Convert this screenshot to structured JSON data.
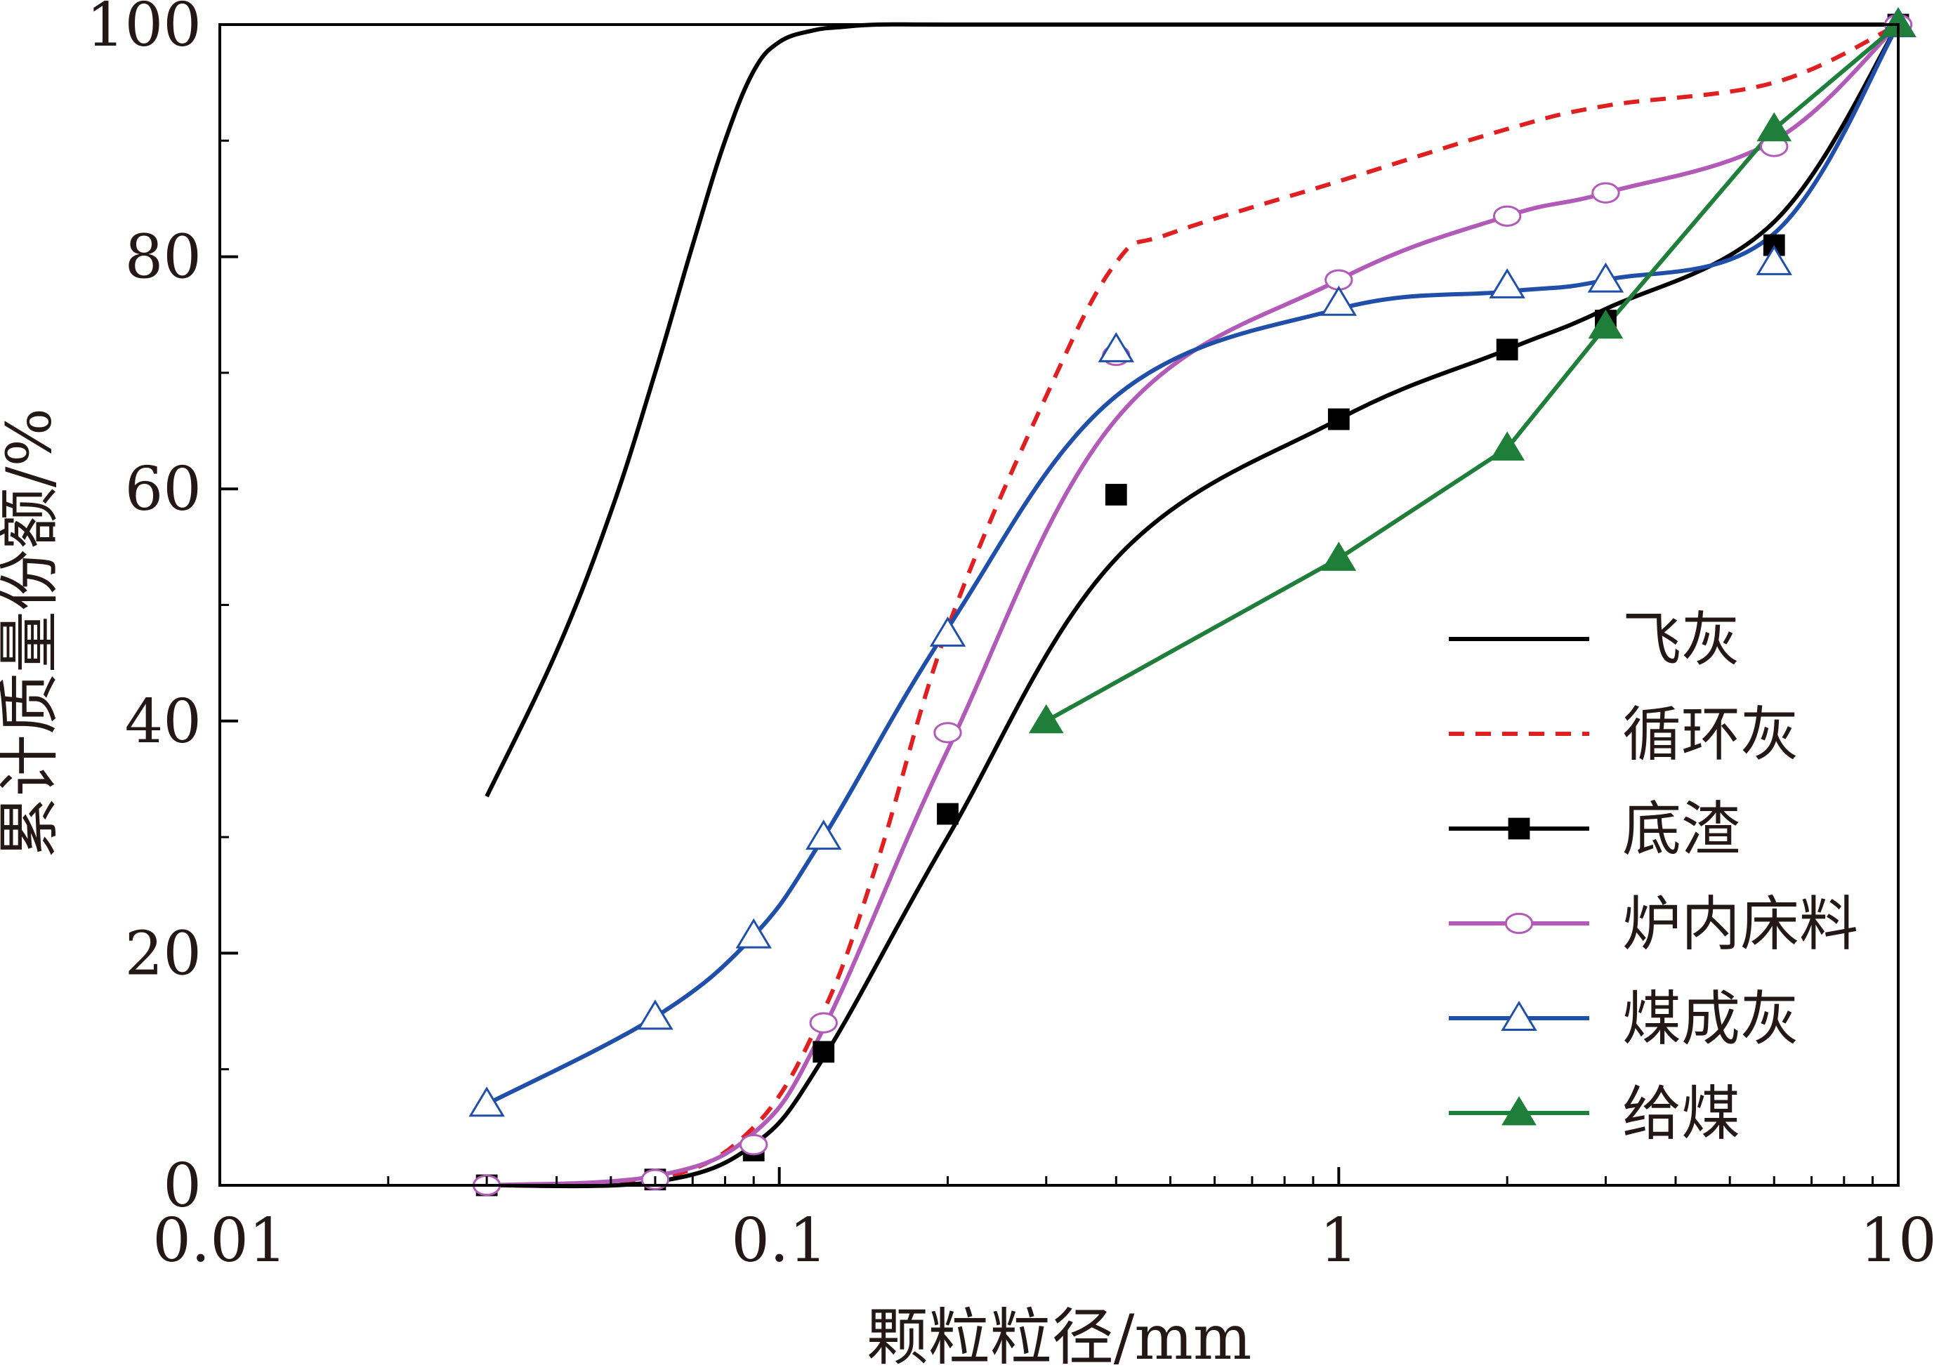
{
  "chart_data": {
    "type": "line",
    "title": "",
    "xlabel": "颗粒粒径/mm",
    "ylabel": "累计质量份额/%",
    "xscale": "log",
    "xlim": [
      0.01,
      10
    ],
    "ylim": [
      0,
      100
    ],
    "xticks": [
      0.01,
      0.1,
      1,
      10
    ],
    "xtick_labels": [
      "0.01",
      "0.1",
      "1",
      "10"
    ],
    "yticks": [
      0,
      20,
      40,
      60,
      80,
      100
    ],
    "ytick_labels": [
      "0",
      "20",
      "40",
      "60",
      "80",
      "100"
    ],
    "grid": false,
    "legend_position": "bottom-right",
    "series": [
      {
        "name": "飞灰",
        "color": "#000000",
        "dash": "solid",
        "marker": "none",
        "x": [
          0.03,
          0.04,
          0.05,
          0.06,
          0.07,
          0.08,
          0.09,
          0.1,
          0.115,
          0.13,
          0.15,
          0.2,
          0.5,
          10
        ],
        "y": [
          33.5,
          46,
          58,
          70,
          81,
          90,
          96,
          98.5,
          99.5,
          99.8,
          100,
          100,
          100,
          100
        ]
      },
      {
        "name": "循环灰",
        "color": "#e02020",
        "dash": "dashed",
        "marker": "none",
        "x": [
          0.03,
          0.06,
          0.09,
          0.12,
          0.15,
          0.2,
          0.3,
          0.4,
          0.5,
          1,
          2,
          3,
          6,
          10
        ],
        "y": [
          0,
          0.5,
          5,
          15,
          28,
          48,
          68,
          79.5,
          82,
          86.5,
          91,
          93,
          95,
          100
        ]
      },
      {
        "name": "底渣",
        "color": "#000000",
        "dash": "solid",
        "marker": "square",
        "x": [
          0.03,
          0.06,
          0.09,
          0.12,
          0.2,
          0.4,
          1,
          2,
          3,
          6,
          10
        ],
        "y": [
          0,
          0.5,
          3,
          11.5,
          32,
          59.5,
          66,
          72,
          74.5,
          81,
          100
        ],
        "curve_y": [
          0,
          0.3,
          3.5,
          11,
          30,
          54,
          66,
          72,
          75.5,
          83,
          100
        ]
      },
      {
        "name": "炉内床料",
        "color": "#b25ab7",
        "dash": "solid",
        "marker": "circle-open",
        "x": [
          0.03,
          0.06,
          0.09,
          0.12,
          0.2,
          0.4,
          1,
          2,
          3,
          6,
          10
        ],
        "y": [
          0,
          0.5,
          3.5,
          14,
          39,
          71.5,
          78,
          83.5,
          85.5,
          89.5,
          100
        ],
        "curve_y": [
          0,
          0.8,
          4.5,
          13.5,
          37.5,
          66,
          78,
          83.5,
          85.5,
          90,
          100
        ]
      },
      {
        "name": "煤成灰",
        "color": "#1f4fa8",
        "dash": "solid",
        "marker": "triangle-open",
        "x": [
          0.03,
          0.06,
          0.09,
          0.12,
          0.2,
          0.4,
          1,
          2,
          3,
          6,
          10
        ],
        "y": [
          7,
          14.5,
          21.5,
          30,
          47.5,
          72,
          76,
          77.5,
          78,
          79.5,
          100
        ],
        "curve_y": [
          7,
          14.5,
          21.5,
          30,
          48,
          68,
          75.5,
          77,
          78,
          82,
          100
        ]
      },
      {
        "name": "给煤",
        "color": "#1f7f3a",
        "dash": "solid",
        "marker": "triangle-filled",
        "x": [
          0.3,
          1,
          2,
          3,
          6,
          10
        ],
        "y": [
          40,
          54,
          63.5,
          74,
          91,
          100
        ]
      }
    ]
  }
}
